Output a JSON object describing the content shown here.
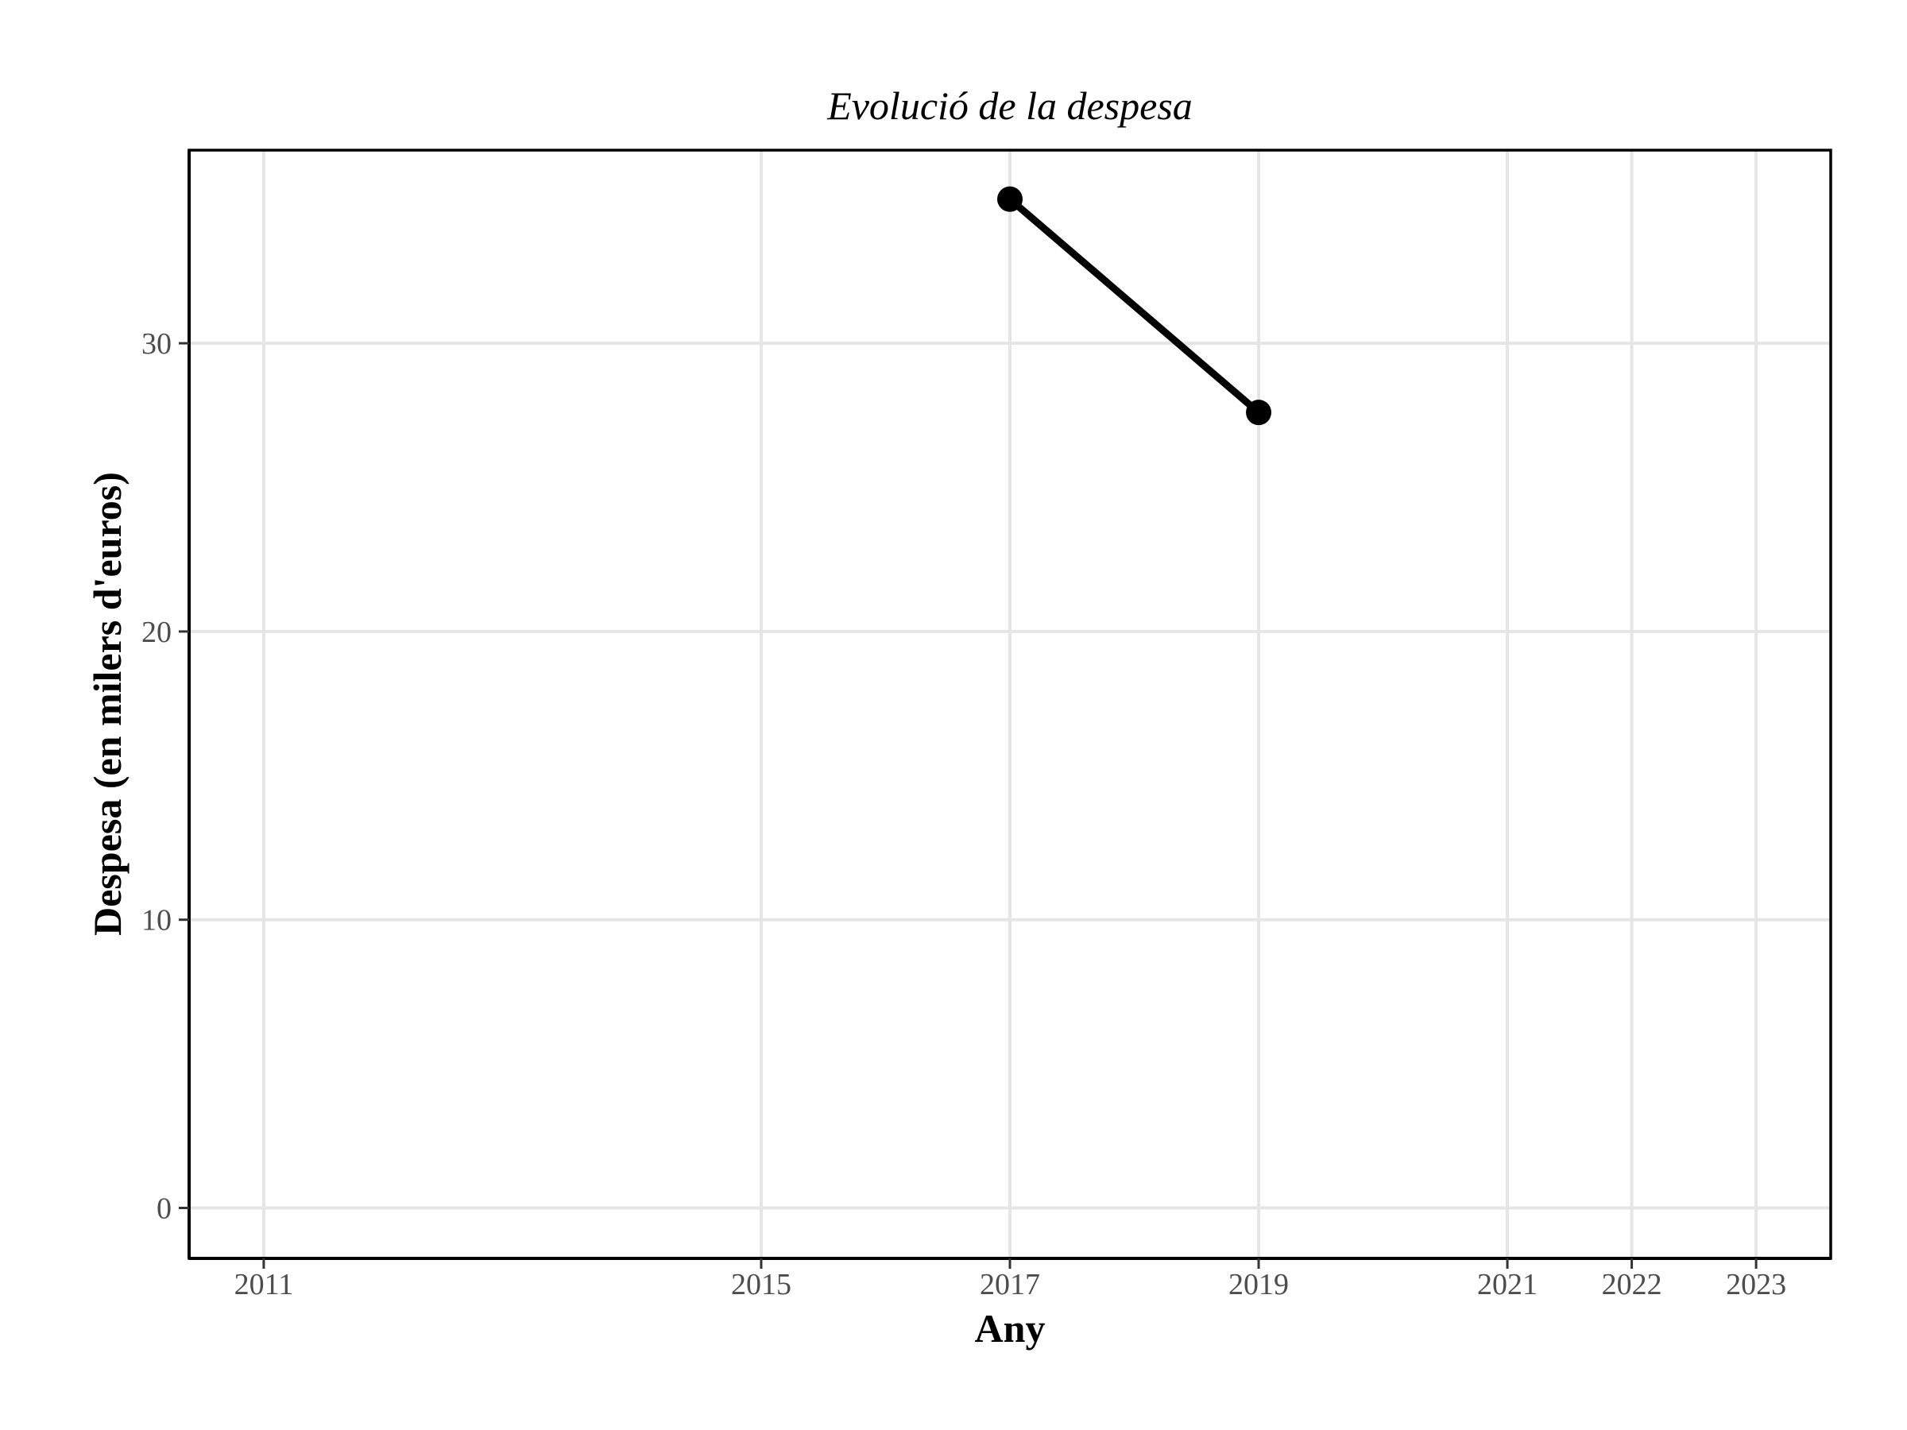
{
  "chart_data": {
    "type": "line",
    "title": "Evolució de la despesa",
    "xlabel": "Any",
    "ylabel": "Despesa (en milers d'euros)",
    "x_ticks": [
      2011,
      2015,
      2017,
      2019,
      2021,
      2022,
      2023
    ],
    "y_ticks": [
      0,
      10,
      20,
      30
    ],
    "xlim": [
      2010.4,
      2023.6
    ],
    "ylim": [
      -1.75,
      36.7
    ],
    "grid": true,
    "legend": "none",
    "series": [
      {
        "x": [
          2017,
          2019
        ],
        "y": [
          35.0,
          27.6
        ],
        "color": "#000000"
      }
    ]
  }
}
